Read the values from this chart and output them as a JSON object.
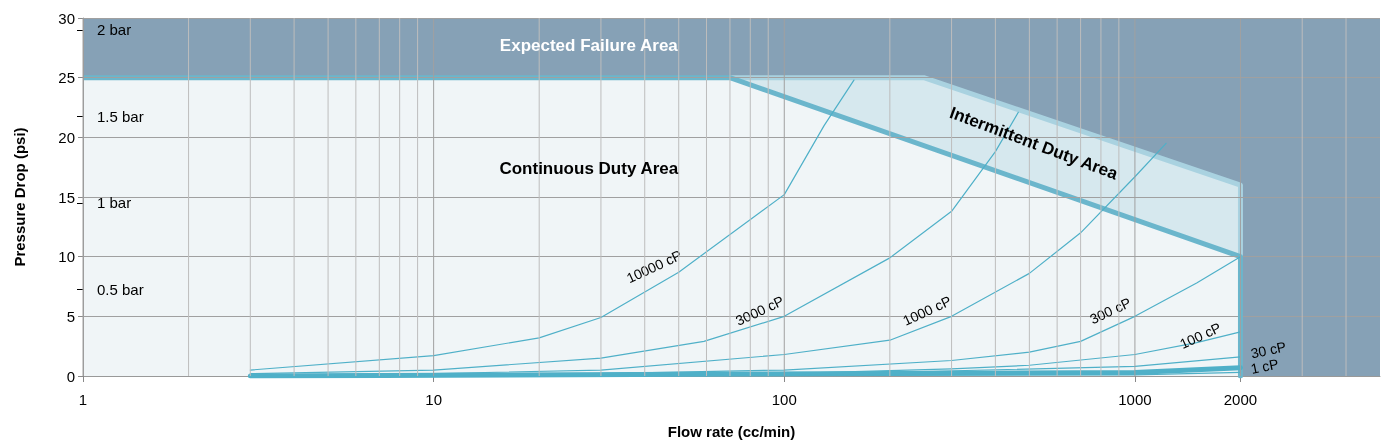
{
  "chart_data": {
    "type": "line",
    "xlabel": "Flow rate (cc/min)",
    "ylabel": "Pressure Drop (psi)",
    "log": "x",
    "grid": true,
    "legend": false,
    "xlim": [
      1,
      5000
    ],
    "xticks": [
      1,
      {
        "value": 2,
        "label": null
      },
      {
        "value": 3,
        "label": null
      },
      {
        "value": 4,
        "label": null
      },
      {
        "value": 5,
        "label": null
      },
      {
        "value": 6,
        "label": null
      },
      {
        "value": 7,
        "label": null
      },
      {
        "value": 8,
        "label": null
      },
      {
        "value": 9,
        "label": null
      },
      10,
      {
        "value": 20,
        "label": null
      },
      {
        "value": 30,
        "label": null
      },
      {
        "value": 40,
        "label": null
      },
      {
        "value": 50,
        "label": null
      },
      {
        "value": 60,
        "label": null
      },
      {
        "value": 70,
        "label": null
      },
      {
        "value": 80,
        "label": null
      },
      {
        "value": 90,
        "label": null
      },
      100,
      {
        "value": 200,
        "label": null
      },
      {
        "value": 300,
        "label": null
      },
      {
        "value": 400,
        "label": null
      },
      {
        "value": 500,
        "label": null
      },
      {
        "value": 600,
        "label": null
      },
      {
        "value": 700,
        "label": null
      },
      {
        "value": 800,
        "label": null
      },
      {
        "value": 900,
        "label": null
      },
      1000,
      2000,
      {
        "value": 3000,
        "label": null
      },
      {
        "value": 4000,
        "label": null
      }
    ],
    "ylim": [
      0,
      30
    ],
    "yticks": [
      0,
      5,
      10,
      15,
      20,
      25,
      30
    ],
    "y2lim": [
      0,
      2.068
    ],
    "y2ticks": [
      {
        "value": 0.5,
        "label": "0.5 bar"
      },
      {
        "value": 1,
        "label": "1 bar"
      },
      {
        "value": 1.5,
        "label": "1.5 bar"
      },
      {
        "value": 2,
        "label": "2 bar"
      }
    ],
    "annotations": [
      "Expected Failure Area",
      "Continuous Duty Area",
      "Intermittent Duty Area"
    ],
    "series": [
      {
        "type": "area",
        "color": "#86a1b6",
        "x": [
          1,
          5000
        ],
        "values": [
          30,
          30
        ]
      },
      {
        "type": "area",
        "color": "#a9d2e0",
        "x": [
          70,
          250,
          2000,
          2000
        ],
        "values": [
          25,
          25,
          16,
          10
        ]
      },
      {
        "type": "area",
        "color": "#6bb6cc",
        "x": [
          1,
          70,
          2000
        ],
        "values": [
          25,
          25,
          10
        ]
      },
      {
        "color": "#6bb6cc",
        "x": [
          2000,
          2000
        ],
        "values": [
          10,
          0
        ]
      },
      {
        "name": "10000 cP",
        "color": "#4fb0c8",
        "x": [
          3,
          10,
          20,
          30,
          50,
          100,
          130,
          158
        ],
        "values": [
          0.5,
          1.7,
          3.2,
          4.9,
          8.7,
          15.2,
          21,
          24.8
        ]
      },
      {
        "name": "3000 cP",
        "color": "#4fb0c8",
        "x": [
          3,
          10,
          30,
          59,
          100,
          200,
          300,
          400,
          465
        ],
        "values": [
          0.2,
          0.5,
          1.5,
          2.9,
          5.0,
          9.9,
          13.8,
          18.8,
          22.1
        ]
      },
      {
        "name": "1000 cP",
        "color": "#4fb0c8",
        "x": [
          3,
          10,
          30,
          100,
          200,
          300,
          500,
          700,
          1000,
          1227
        ],
        "values": [
          0.1,
          0.2,
          0.5,
          1.8,
          3.0,
          5.0,
          8.6,
          12,
          16.7,
          19.5
        ]
      },
      {
        "name": "300 cP",
        "color": "#4fb0c8",
        "x": [
          3,
          30,
          100,
          300,
          500,
          700,
          1000,
          1500,
          2000
        ],
        "values": [
          0.1,
          0.2,
          0.5,
          1.3,
          2.0,
          2.9,
          5.0,
          7.8,
          10.0
        ]
      },
      {
        "name": "100 cP",
        "color": "#4fb0c8",
        "x": [
          3,
          100,
          300,
          500,
          1000,
          1500,
          2000
        ],
        "values": [
          0,
          0.2,
          0.6,
          0.9,
          1.8,
          2.8,
          3.7
        ]
      },
      {
        "name": "30 cP",
        "color": "#4fb0c8",
        "x": [
          3,
          100,
          1000,
          2000
        ],
        "values": [
          0,
          0.1,
          0.8,
          1.6
        ]
      },
      {
        "color": "#4fb0c8",
        "x": [
          3,
          1000,
          2000
        ],
        "values": [
          0,
          0.3,
          0.7
        ]
      },
      {
        "name": "1 cP",
        "color": "#4fb0c8",
        "x": [
          3,
          1000,
          2000
        ],
        "values": [
          0,
          0.1,
          0.3
        ]
      }
    ]
  }
}
